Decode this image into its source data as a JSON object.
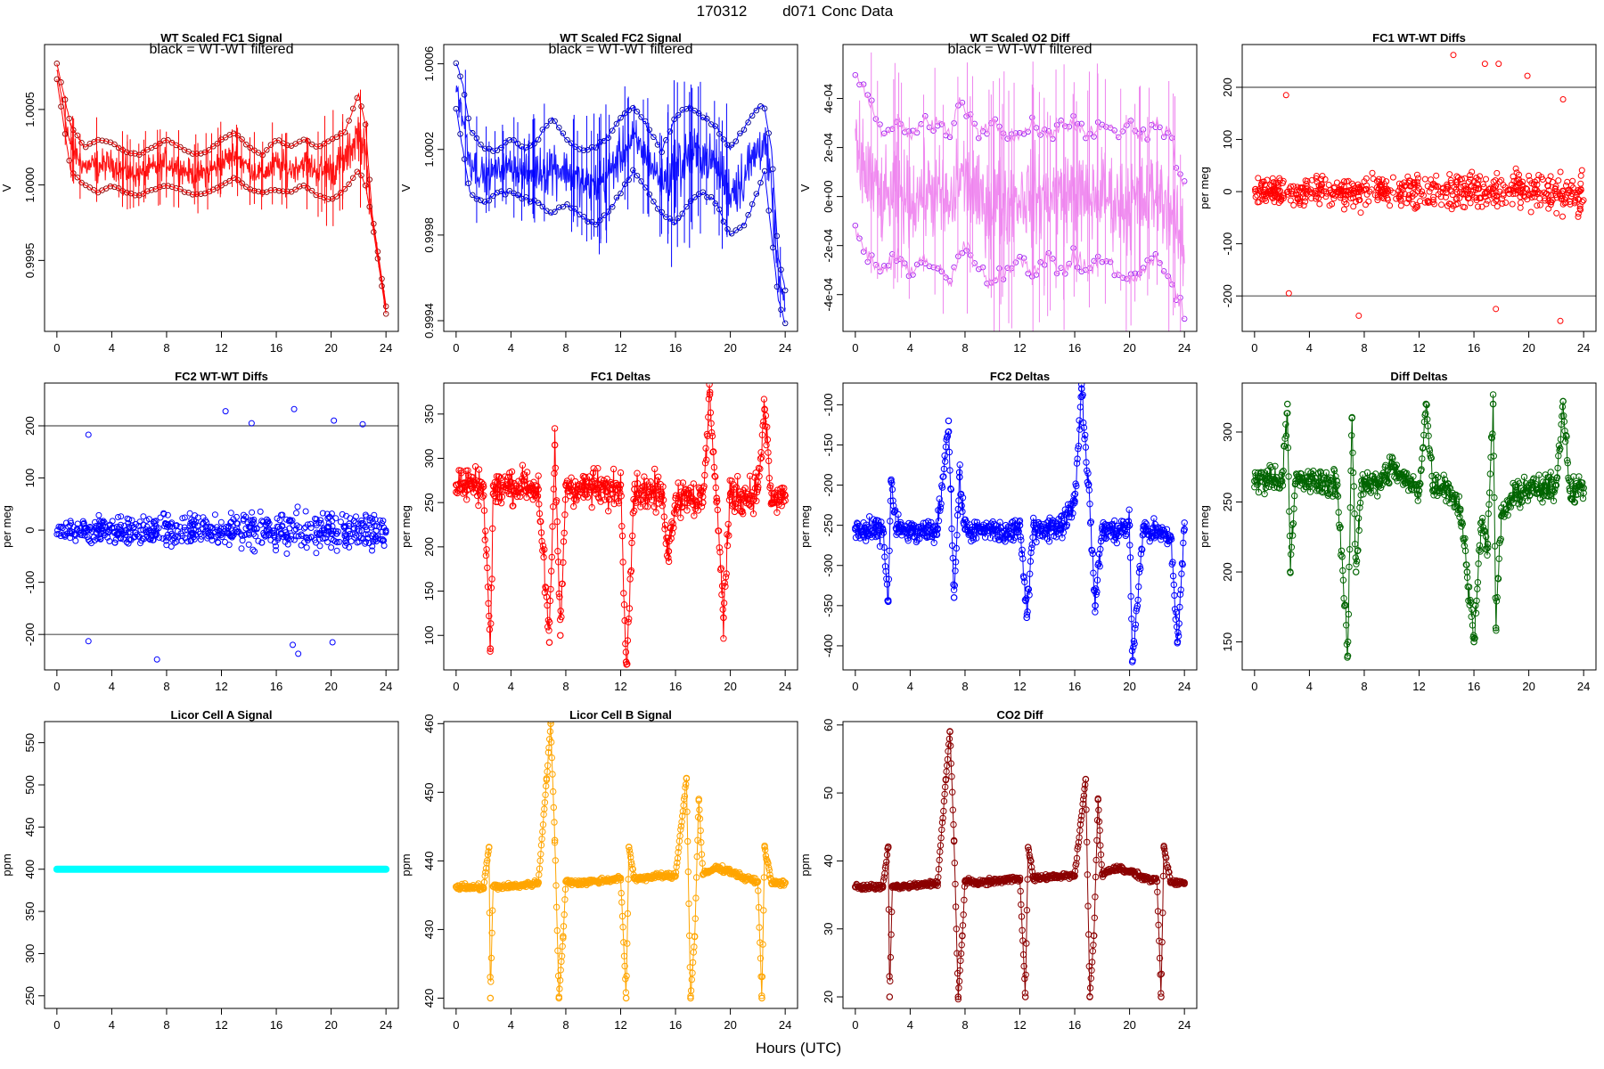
{
  "figure": {
    "title_id": "170312",
    "title_day": "d071",
    "title_label": "Conc Data",
    "xlabel": "Hours (UTC)"
  },
  "chart_data": [
    {
      "id": "p1",
      "type": "line",
      "title": "WT Scaled FC1 Signal",
      "subtitle": "black = WT-WT filtered",
      "ylabel": "V",
      "xlim": [
        -0.9,
        24.9
      ],
      "ylim": [
        0.99903,
        1.00093
      ],
      "yticks": [
        0.9995,
        1.0,
        1.0005
      ],
      "yticklabels": [
        "0.9995",
        "1.0000",
        "1.0005"
      ],
      "xticks": [
        0,
        4,
        8,
        12,
        16,
        20,
        24
      ],
      "color": "#ff0000",
      "mark_color": "#8b0000",
      "series": [
        {
          "name": "upper",
          "x": [
            0,
            0.5,
            1,
            2,
            3,
            4,
            5,
            6,
            7,
            8,
            9,
            10,
            11,
            12,
            13,
            14,
            15,
            16,
            17,
            18,
            19,
            20,
            21,
            22,
            22.5,
            23,
            23.5,
            24
          ],
          "y": [
            1.0008,
            1.0006,
            1.0004,
            1.00025,
            1.0003,
            1.00028,
            1.00022,
            1.0002,
            1.00025,
            1.0003,
            1.00025,
            1.0002,
            1.00022,
            1.0003,
            1.00035,
            1.00025,
            1.0002,
            1.0003,
            1.00025,
            1.0003,
            1.00025,
            1.0003,
            1.00035,
            1.0006,
            1.0004,
            0.9998,
            0.9995,
            0.9992
          ]
        },
        {
          "name": "lower",
          "x": [
            0,
            0.5,
            1,
            2,
            3,
            4,
            5,
            6,
            7,
            8,
            9,
            10,
            11,
            12,
            13,
            14,
            15,
            16,
            17,
            18,
            19,
            20,
            21,
            22,
            22.5,
            23,
            23.5,
            24
          ],
          "y": [
            1.0007,
            1.0004,
            1.0001,
            1.0,
            0.99995,
            1.0,
            0.99995,
            0.99993,
            0.99997,
            1.0,
            0.99997,
            0.99993,
            0.99995,
            1.0,
            1.00005,
            0.99997,
            0.99995,
            0.99997,
            0.99995,
            1.0,
            0.99993,
            0.9999,
            0.99997,
            1.0001,
            1.0,
            0.99975,
            0.99945,
            0.99915
          ]
        }
      ]
    },
    {
      "id": "p2",
      "type": "line",
      "title": "WT Scaled FC2 Signal",
      "subtitle": "black = WT-WT filtered",
      "ylabel": "V",
      "xlim": [
        -0.9,
        24.9
      ],
      "ylim": [
        0.99935,
        1.00069
      ],
      "yticks": [
        0.9994,
        0.9998,
        1.0002,
        1.0006
      ],
      "yticklabels": [
        "0.9994",
        "0.9998",
        "1.0002",
        "1.0006"
      ],
      "xticks": [
        0,
        4,
        8,
        12,
        16,
        20,
        24
      ],
      "color": "#0000ff",
      "mark_color": "#00008b",
      "series": [
        {
          "name": "upper",
          "x": [
            0,
            0.5,
            1,
            2,
            3,
            4,
            5,
            6,
            7,
            8,
            9,
            10,
            11,
            12,
            13,
            14,
            15,
            16,
            17,
            18,
            19,
            20,
            21,
            22,
            22.5,
            23,
            23.5,
            24
          ],
          "y": [
            1.0006,
            1.0005,
            1.0003,
            1.0002,
            1.0002,
            1.00025,
            1.0002,
            1.00025,
            1.00035,
            1.00025,
            1.0002,
            1.0002,
            1.00025,
            1.00035,
            1.0004,
            1.0003,
            1.0002,
            1.00035,
            1.0004,
            1.00035,
            1.0003,
            1.0002,
            1.0003,
            1.0004,
            1.0004,
            1.0002,
            0.9997,
            0.99955
          ]
        },
        {
          "name": "lower",
          "x": [
            0,
            0.5,
            1,
            2,
            3,
            4,
            5,
            6,
            7,
            8,
            9,
            10,
            11,
            12,
            13,
            14,
            15,
            16,
            17,
            18,
            19,
            20,
            21,
            22,
            22.5,
            23,
            23.5,
            24
          ],
          "y": [
            1.0004,
            1.0002,
            1.0,
            0.99995,
            1.0,
            1.0,
            0.99997,
            0.99995,
            0.9999,
            0.99995,
            0.9999,
            0.99985,
            0.9999,
            1.0,
            1.0001,
            1.0,
            0.9999,
            0.99985,
            0.99995,
            1.0,
            0.99995,
            0.9998,
            0.99985,
            1.0,
            1.0001,
            0.9998,
            0.9995,
            0.99938
          ]
        }
      ]
    },
    {
      "id": "p3",
      "type": "line",
      "title": "WT Scaled O2 Diff",
      "subtitle": "black = WT-WT filtered",
      "ylabel": "V",
      "xlim": [
        -0.9,
        24.9
      ],
      "ylim": [
        -0.00055,
        0.00062
      ],
      "yticks": [
        -0.0004,
        -0.0002,
        0,
        0.0002,
        0.0004
      ],
      "yticklabels": [
        "-4e-04",
        "-2e-04",
        "0e+00",
        "2e-04",
        "4e-04"
      ],
      "xticks": [
        0,
        4,
        8,
        12,
        16,
        20,
        24
      ],
      "color": "#ee82ee",
      "mark_color": "#a020f0",
      "series": [
        {
          "name": "upper",
          "x": [
            0,
            0.5,
            1,
            2,
            3,
            4,
            5,
            6,
            7,
            7.5,
            8,
            9,
            10,
            11,
            12,
            13,
            14,
            15,
            16,
            17,
            18,
            19,
            20,
            21,
            22,
            23,
            23.5,
            24
          ],
          "y": [
            0.0005,
            0.00045,
            0.0004,
            0.00025,
            0.0003,
            0.00025,
            0.0003,
            0.0003,
            0.00025,
            0.0004,
            0.00035,
            0.00025,
            0.0003,
            0.00025,
            0.00025,
            0.0003,
            0.00025,
            0.0003,
            0.0003,
            0.00025,
            0.0003,
            0.00025,
            0.0003,
            0.00025,
            0.0003,
            0.00025,
            0.0001,
            5e-05
          ]
        },
        {
          "name": "lower",
          "x": [
            0,
            0.5,
            1,
            2,
            3,
            4,
            5,
            6,
            7,
            7.5,
            8,
            9,
            10,
            11,
            12,
            13,
            14,
            15,
            16,
            17,
            18,
            19,
            20,
            21,
            22,
            23,
            23.5,
            24
          ],
          "y": [
            -0.00015,
            -0.0002,
            -0.00025,
            -0.0003,
            -0.00025,
            -0.0003,
            -0.00025,
            -0.0003,
            -0.00035,
            -0.00025,
            -0.0002,
            -0.0003,
            -0.00035,
            -0.0003,
            -0.00025,
            -0.0003,
            -0.00025,
            -0.0003,
            -0.00025,
            -0.0003,
            -0.00025,
            -0.0003,
            -0.00035,
            -0.0003,
            -0.00025,
            -0.00035,
            -0.0004,
            -0.0005
          ]
        }
      ]
    },
    {
      "id": "p4",
      "type": "scatter",
      "title": "FC1 WT-WT Diffs",
      "ylabel": "per meg",
      "xlim": [
        -0.9,
        24.9
      ],
      "ylim": [
        -268,
        282
      ],
      "yticks": [
        -200,
        -100,
        0,
        100,
        200
      ],
      "yticklabels": [
        "-200",
        "-100",
        "0",
        "100",
        "200"
      ],
      "xticks": [
        0,
        4,
        8,
        12,
        16,
        20,
        24
      ],
      "color": "#ff0000",
      "hlines": [
        -200,
        200
      ],
      "spread": 40,
      "outliers": {
        "x": [
          2.3,
          14.5,
          16.8,
          17.8,
          19.9,
          22.5,
          7.6,
          2.5,
          17.6,
          22.3
        ],
        "y": [
          185,
          262,
          245,
          245,
          222,
          177,
          -238,
          -195,
          -225,
          -248
        ]
      }
    },
    {
      "id": "p5",
      "type": "scatter",
      "title": "FC2 WT-WT Diffs",
      "ylabel": "per meg",
      "xlim": [
        -0.9,
        24.9
      ],
      "ylim": [
        -268,
        282
      ],
      "yticks": [
        -200,
        -100,
        0,
        100,
        200
      ],
      "yticklabels": [
        "-200",
        "-100",
        "0",
        "100",
        "200"
      ],
      "xticks": [
        0,
        4,
        8,
        12,
        16,
        20,
        24
      ],
      "color": "#0000ff",
      "hlines": [
        -200,
        200
      ],
      "spread": 40,
      "outliers": {
        "x": [
          2.3,
          12.3,
          14.2,
          17.3,
          20.2,
          22.3,
          7.3,
          2.3,
          17.2,
          20.1,
          17.6
        ],
        "y": [
          183,
          228,
          205,
          232,
          210,
          203,
          -248,
          -213,
          -220,
          -215,
          -237
        ]
      }
    },
    {
      "id": "p6",
      "type": "line",
      "title": "FC1 Deltas",
      "ylabel": "per meg",
      "xlim": [
        -0.9,
        24.9
      ],
      "ylim": [
        61,
        385
      ],
      "yticks": [
        100,
        150,
        200,
        250,
        300,
        350
      ],
      "yticklabels": [
        "100",
        "150",
        "200",
        "250",
        "300",
        "350"
      ],
      "xticks": [
        0,
        4,
        8,
        12,
        16,
        20,
        24
      ],
      "color": "#ff0000",
      "spread": 30,
      "x": [
        0,
        1,
        2,
        2.5,
        2.7,
        3,
        4,
        5,
        6,
        6.8,
        7.2,
        7.6,
        8,
        9,
        10,
        11,
        12,
        12.4,
        13,
        14,
        15,
        15.5,
        16,
        17,
        18,
        18.5,
        19,
        19.5,
        20,
        21,
        22,
        22.5,
        23,
        24
      ],
      "y": [
        270,
        272,
        268,
        85,
        260,
        265,
        268,
        270,
        265,
        92,
        315,
        100,
        270,
        265,
        268,
        262,
        270,
        70,
        265,
        262,
        260,
        195,
        255,
        260,
        250,
        372,
        255,
        120,
        260,
        255,
        265,
        355,
        250,
        258
      ]
    },
    {
      "id": "p7",
      "type": "line",
      "title": "FC2 Deltas",
      "ylabel": "per meg",
      "xlim": [
        -0.9,
        24.9
      ],
      "ylim": [
        -430,
        -73
      ],
      "yticks": [
        -400,
        -350,
        -300,
        -250,
        -200,
        -150,
        -100
      ],
      "yticklabels": [
        "-400",
        "-350",
        "-300",
        "-250",
        "-200",
        "-150",
        "-100"
      ],
      "xticks": [
        0,
        4,
        8,
        12,
        16,
        20,
        24
      ],
      "color": "#0000ff",
      "spread": 22,
      "x": [
        0,
        1,
        2,
        2.4,
        2.6,
        3,
        4,
        5,
        6,
        6.8,
        7.2,
        7.6,
        8,
        9,
        10,
        11,
        12,
        12.5,
        13,
        14,
        15,
        16,
        16.5,
        17,
        17.5,
        18,
        19,
        20,
        20.2,
        21,
        22,
        23,
        23.5,
        24
      ],
      "y": [
        -255,
        -260,
        -255,
        -345,
        -195,
        -255,
        -258,
        -260,
        -255,
        -120,
        -340,
        -190,
        -255,
        -258,
        -255,
        -262,
        -250,
        -365,
        -250,
        -255,
        -250,
        -220,
        -80,
        -200,
        -350,
        -255,
        -258,
        -250,
        -420,
        -255,
        -260,
        -265,
        -395,
        -255
      ]
    },
    {
      "id": "p8",
      "type": "line",
      "title": "Diff Deltas",
      "ylabel": "per meg",
      "xlim": [
        -0.9,
        24.9
      ],
      "ylim": [
        130,
        335
      ],
      "yticks": [
        150,
        200,
        250,
        300
      ],
      "yticklabels": [
        "150",
        "200",
        "250",
        "300"
      ],
      "xticks": [
        0,
        4,
        8,
        12,
        16,
        20,
        24
      ],
      "color": "#006400",
      "spread": 14,
      "x": [
        0,
        1,
        2,
        2.4,
        2.6,
        3,
        4,
        5,
        6,
        6.8,
        7.1,
        7.4,
        7.8,
        8,
        9,
        10,
        11,
        12,
        12.5,
        13,
        14,
        15,
        15.5,
        16,
        16.5,
        17,
        17.4,
        17.6,
        18,
        19,
        20,
        21,
        22,
        22.5,
        23,
        24
      ],
      "y": [
        265,
        268,
        265,
        320,
        200,
        265,
        265,
        263,
        265,
        140,
        310,
        200,
        265,
        265,
        262,
        275,
        265,
        258,
        320,
        262,
        262,
        245,
        200,
        150,
        235,
        220,
        320,
        160,
        240,
        255,
        260,
        258,
        262,
        322,
        258,
        260
      ]
    },
    {
      "id": "p9",
      "type": "line",
      "title": "Licor Cell A Signal",
      "ylabel": "ppm",
      "xlim": [
        -0.9,
        24.9
      ],
      "ylim": [
        235,
        575
      ],
      "yticks": [
        250,
        300,
        350,
        400,
        450,
        500,
        550
      ],
      "yticklabels": [
        "250",
        "300",
        "350",
        "400",
        "450",
        "500",
        "550"
      ],
      "xticks": [
        0,
        4,
        8,
        12,
        16,
        20,
        24
      ],
      "color": "#00ffff",
      "spread": 0,
      "x": [
        0,
        24
      ],
      "y": [
        400,
        400
      ]
    },
    {
      "id": "p10",
      "type": "line",
      "title": "Licor Cell B Signal",
      "ylabel": "ppm",
      "xlim": [
        -0.9,
        24.9
      ],
      "ylim": [
        418.5,
        460.3
      ],
      "yticks": [
        420,
        430,
        440,
        450,
        460
      ],
      "yticklabels": [
        "420",
        "430",
        "440",
        "450",
        "460"
      ],
      "xticks": [
        0,
        4,
        8,
        12,
        16,
        20,
        24
      ],
      "color": "#ffa500",
      "spread": 0.6,
      "x": [
        0,
        2,
        2.4,
        2.5,
        2.7,
        3,
        4,
        5,
        6,
        6.6,
        6.9,
        7.2,
        7.5,
        7.8,
        8,
        9,
        10,
        11,
        12,
        12.4,
        12.6,
        13,
        14,
        15,
        16,
        16.8,
        17.1,
        17.4,
        17.7,
        18,
        19,
        20,
        21,
        22,
        22.3,
        22.5,
        23,
        24
      ],
      "y": [
        436.2,
        436.1,
        442,
        420,
        436.3,
        436.2,
        436.3,
        436.5,
        436.8,
        452,
        460,
        443,
        420,
        429,
        437,
        436.8,
        437,
        437.2,
        437.5,
        420,
        442,
        437.4,
        437.6,
        437.8,
        437.8,
        452,
        420,
        429,
        449,
        438,
        439,
        438.5,
        437.5,
        437,
        420,
        442,
        436.8,
        436.8
      ]
    },
    {
      "id": "p11",
      "type": "line",
      "title": "CO2 Diff",
      "ylabel": "ppm",
      "xlim": [
        -0.9,
        24.9
      ],
      "ylim": [
        18.3,
        60.5
      ],
      "yticks": [
        20,
        30,
        40,
        50,
        60
      ],
      "yticklabels": [
        "20",
        "30",
        "40",
        "50",
        "60"
      ],
      "xticks": [
        0,
        4,
        8,
        12,
        16,
        20,
        24
      ],
      "color": "#8b0000",
      "spread": 0.6,
      "x": [
        0,
        2,
        2.4,
        2.5,
        2.7,
        3,
        4,
        5,
        6,
        6.6,
        6.9,
        7.2,
        7.5,
        7.8,
        8,
        9,
        10,
        11,
        12,
        12.4,
        12.6,
        13,
        14,
        15,
        16,
        16.8,
        17.1,
        17.4,
        17.7,
        18,
        19,
        20,
        21,
        22,
        22.3,
        22.5,
        23,
        24
      ],
      "y": [
        36.2,
        36.1,
        42,
        20,
        36.3,
        36.2,
        36.3,
        36.5,
        36.8,
        52,
        59,
        43,
        20,
        29,
        37,
        36.8,
        37,
        37.2,
        37.5,
        20,
        42,
        37.4,
        37.6,
        37.8,
        37.8,
        52,
        20,
        29,
        49,
        38,
        39,
        38.5,
        37.5,
        37,
        20,
        42,
        36.8,
        36.8
      ]
    }
  ]
}
